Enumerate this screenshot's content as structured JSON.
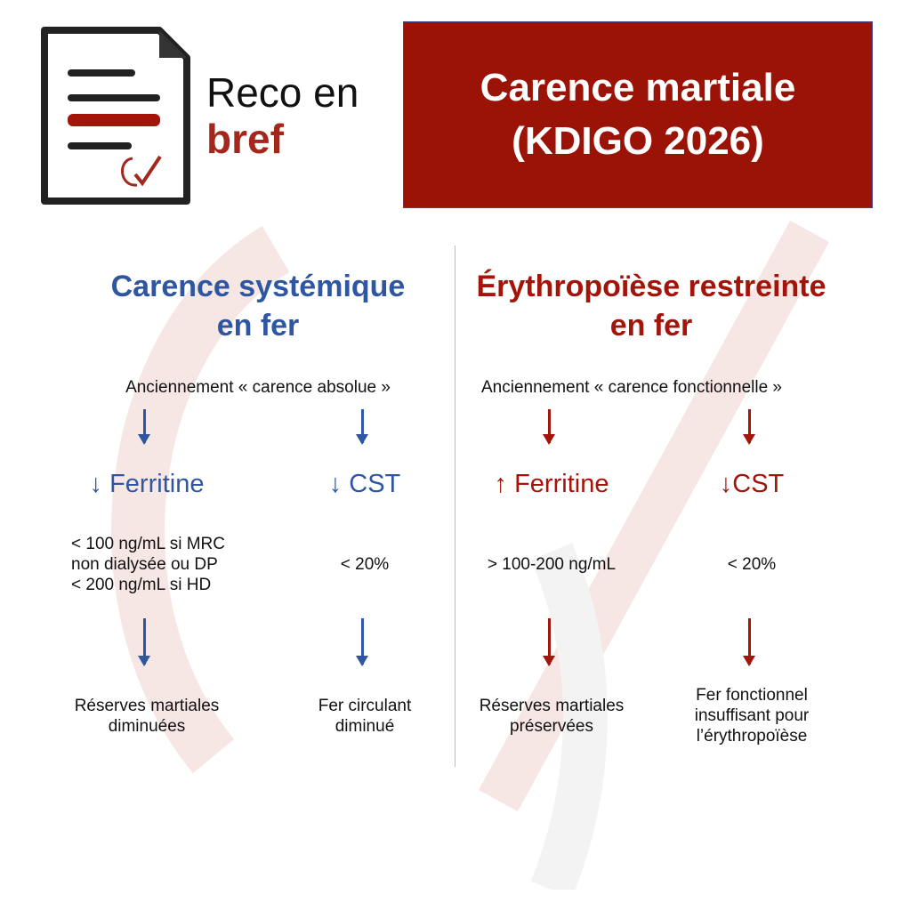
{
  "logo": {
    "line1": "Reco en",
    "line2": "bref"
  },
  "banner": {
    "line1": "Carence martiale",
    "line2": "(KDIGO 2026)"
  },
  "colors": {
    "blue": "#2f56a0",
    "red": "#a3140a",
    "banner": "#9b1306"
  },
  "left": {
    "title1": "Carence systémique",
    "title2": "en fer",
    "subtitle": "Anciennement « carence absolue »",
    "params": [
      {
        "label": "↓ Ferritine",
        "value": [
          "< 100 ng/mL si MRC",
          "non dialysée  ou DP",
          "< 200 ng/mL si HD"
        ],
        "result": [
          "Réserves martiales",
          "diminuées"
        ]
      },
      {
        "label": "↓ CST",
        "value": [
          "< 20%"
        ],
        "result": [
          "Fer circulant",
          "diminué"
        ]
      }
    ]
  },
  "right": {
    "title1": "Érythropoïèse restreinte",
    "title2": "en fer",
    "subtitle": "Anciennement « carence fonctionnelle »",
    "params": [
      {
        "label": "↑ Ferritine",
        "value": [
          "> 100-200 ng/mL"
        ],
        "result": [
          "Réserves martiales",
          "préservées"
        ]
      },
      {
        "label": "↓CST",
        "value": [
          "< 20%"
        ],
        "result": [
          "Fer fonctionnel",
          "insuffisant pour",
          "l’érythropoïèse"
        ]
      }
    ]
  }
}
